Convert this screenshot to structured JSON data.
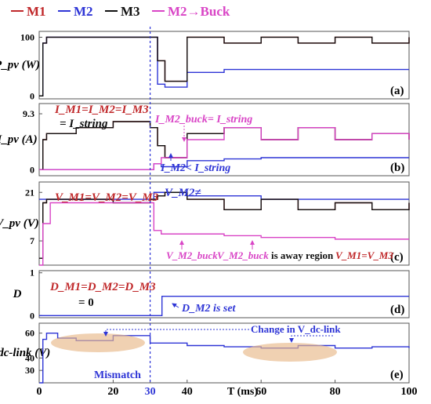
{
  "legend": [
    {
      "name": "M1",
      "color": "#c0282a"
    },
    {
      "name": "M2",
      "color": "#2e35d6"
    },
    {
      "name": "M3",
      "color": "#111111"
    },
    {
      "name": "M2→Buck",
      "color": "#d945c6"
    }
  ],
  "x_axis": {
    "label": "T (ms)",
    "ticks": [
      "0",
      "20",
      "30",
      "40",
      "60",
      "80",
      "100"
    ],
    "tick_values": [
      0,
      20,
      30,
      40,
      60,
      80,
      100
    ],
    "range": [
      0,
      100
    ],
    "mismatch_marker": 30
  },
  "annotations": {
    "mismatch": "Mismatch",
    "b_I_equal": "I_M1=I_M2=I_M3",
    "b_I_string": "= I_string",
    "b_buck_eq": "I_M2_buck= I_string",
    "b_m2_less": "I_M2< I_string",
    "c_V_equal": "V_M1=V_M2=V_M3",
    "c_V_m2_neq": "V_M2≠",
    "c_V_m2_buck": "V_M2_buck",
    "c_V_m2_buck2": "V_M2_buck",
    "c_away_text": "is away region",
    "c_V_m1_m3": "V_M1=V_M3",
    "d_D_equal": "D_M1=D_M2=D_M3",
    "d_zero": "= 0",
    "d_set": "D_M2 is set",
    "e_change": "Change in V_dc-link"
  },
  "chart_data": [
    {
      "type": "line",
      "panel": "(a)",
      "ylabel": "P_pv (W)",
      "yticks": [
        0,
        100
      ],
      "ylim": [
        -5,
        110
      ],
      "series": [
        {
          "name": "M1",
          "color": "#c0282a",
          "x": [
            0,
            1,
            2,
            10,
            20,
            30,
            32,
            34,
            40,
            50,
            60,
            70,
            80,
            90,
            100
          ],
          "y": [
            0,
            90,
            100,
            100,
            100,
            100,
            60,
            25,
            100,
            90,
            100,
            90,
            100,
            90,
            100
          ]
        },
        {
          "name": "M2",
          "color": "#2e35d6",
          "x": [
            0,
            1,
            2,
            10,
            20,
            30,
            32,
            34,
            40,
            50,
            60,
            70,
            80,
            90,
            100
          ],
          "y": [
            0,
            90,
            100,
            100,
            100,
            100,
            20,
            15,
            40,
            45,
            45,
            45,
            45,
            45,
            45
          ]
        },
        {
          "name": "M3",
          "color": "#111111",
          "x": [
            0,
            1,
            2,
            10,
            20,
            30,
            32,
            34,
            40,
            50,
            60,
            70,
            80,
            90,
            100
          ],
          "y": [
            0,
            90,
            100,
            100,
            100,
            100,
            60,
            25,
            100,
            90,
            100,
            90,
            100,
            90,
            100
          ]
        }
      ]
    },
    {
      "type": "line",
      "panel": "(b)",
      "ylabel": "I_pv (A)",
      "yticks": [
        0,
        9.3
      ],
      "ylim": [
        -1,
        11
      ],
      "series": [
        {
          "name": "M1",
          "color": "#c0282a",
          "x": [
            0,
            1,
            2,
            10,
            20,
            30,
            32,
            34,
            40,
            50,
            60,
            70,
            80,
            90,
            100
          ],
          "y": [
            0,
            5,
            6,
            7,
            8,
            7,
            4,
            2,
            6,
            7,
            5,
            7,
            5,
            6,
            5
          ]
        },
        {
          "name": "M2",
          "color": "#2e35d6",
          "x": [
            0,
            30,
            31,
            33,
            40,
            50,
            60,
            70,
            80,
            90,
            100
          ],
          "y": [
            0,
            0,
            1,
            0.5,
            1.5,
            1.8,
            2,
            2,
            2,
            2,
            2
          ]
        },
        {
          "name": "M3",
          "color": "#111111",
          "x": [
            0,
            1,
            2,
            10,
            20,
            30,
            32,
            34,
            40,
            50,
            60,
            70,
            80,
            90,
            100
          ],
          "y": [
            0,
            5,
            6,
            7,
            8,
            7,
            4,
            2,
            6,
            7,
            5,
            7,
            5,
            6,
            5
          ]
        },
        {
          "name": "M2→Buck",
          "color": "#d945c6",
          "x": [
            0,
            30,
            31,
            33,
            40,
            50,
            60,
            70,
            80,
            90,
            100
          ],
          "y": [
            0,
            0,
            1,
            2,
            5,
            7,
            5,
            7,
            5,
            6,
            5
          ]
        }
      ]
    },
    {
      "type": "line",
      "panel": "(c)",
      "ylabel": "V_pv (V)",
      "yticks": [
        7,
        21
      ],
      "ylim": [
        0,
        24
      ],
      "series": [
        {
          "name": "M1",
          "color": "#c0282a",
          "x": [
            0,
            1,
            2,
            10,
            20,
            30,
            32,
            34,
            40,
            50,
            60,
            70,
            80,
            90,
            100
          ],
          "y": [
            2,
            18,
            19,
            19,
            18,
            19,
            20,
            21,
            19,
            16,
            19,
            16,
            18,
            16,
            18
          ]
        },
        {
          "name": "M2",
          "color": "#2e35d6",
          "x": [
            0,
            30,
            31,
            33,
            40,
            50,
            60,
            70,
            80,
            90,
            100
          ],
          "y": [
            19,
            19,
            21,
            21,
            20,
            20,
            19,
            19,
            19,
            19,
            19
          ]
        },
        {
          "name": "M3",
          "color": "#111111",
          "x": [
            0,
            1,
            2,
            10,
            20,
            30,
            32,
            34,
            40,
            50,
            60,
            70,
            80,
            90,
            100
          ],
          "y": [
            2,
            18,
            19,
            19,
            18,
            19,
            20,
            21,
            19,
            16,
            19,
            16,
            18,
            16,
            18
          ]
        },
        {
          "name": "M2→Buck",
          "color": "#d945c6",
          "x": [
            0,
            1,
            3,
            30,
            31,
            33,
            40,
            50,
            60,
            70,
            80,
            90,
            100
          ],
          "y": [
            0,
            12,
            18,
            18,
            10,
            9,
            9,
            8.5,
            8,
            8,
            7.5,
            7.5,
            7.5
          ]
        }
      ]
    },
    {
      "type": "line",
      "panel": "(d)",
      "ylabel": "D",
      "yticks": [
        0,
        1
      ],
      "ylim": [
        -0.05,
        1.05
      ],
      "series": [
        {
          "name": "M2",
          "color": "#2e35d6",
          "x": [
            0,
            33,
            33.2,
            100
          ],
          "y": [
            0,
            0,
            0.45,
            0.45
          ]
        }
      ]
    },
    {
      "type": "line",
      "panel": "(e)",
      "ylabel": "V_dc-link (V)",
      "yticks": [
        30,
        40,
        60
      ],
      "ylim": [
        20,
        68
      ],
      "series": [
        {
          "name": "M2",
          "color": "#2e35d6",
          "x": [
            0,
            1,
            2,
            5,
            10,
            20,
            30,
            40,
            50,
            60,
            70,
            80,
            90,
            100
          ],
          "y": [
            20,
            55,
            60,
            56,
            54,
            58,
            52,
            50,
            49,
            48,
            50,
            48,
            49,
            48
          ]
        }
      ]
    }
  ]
}
